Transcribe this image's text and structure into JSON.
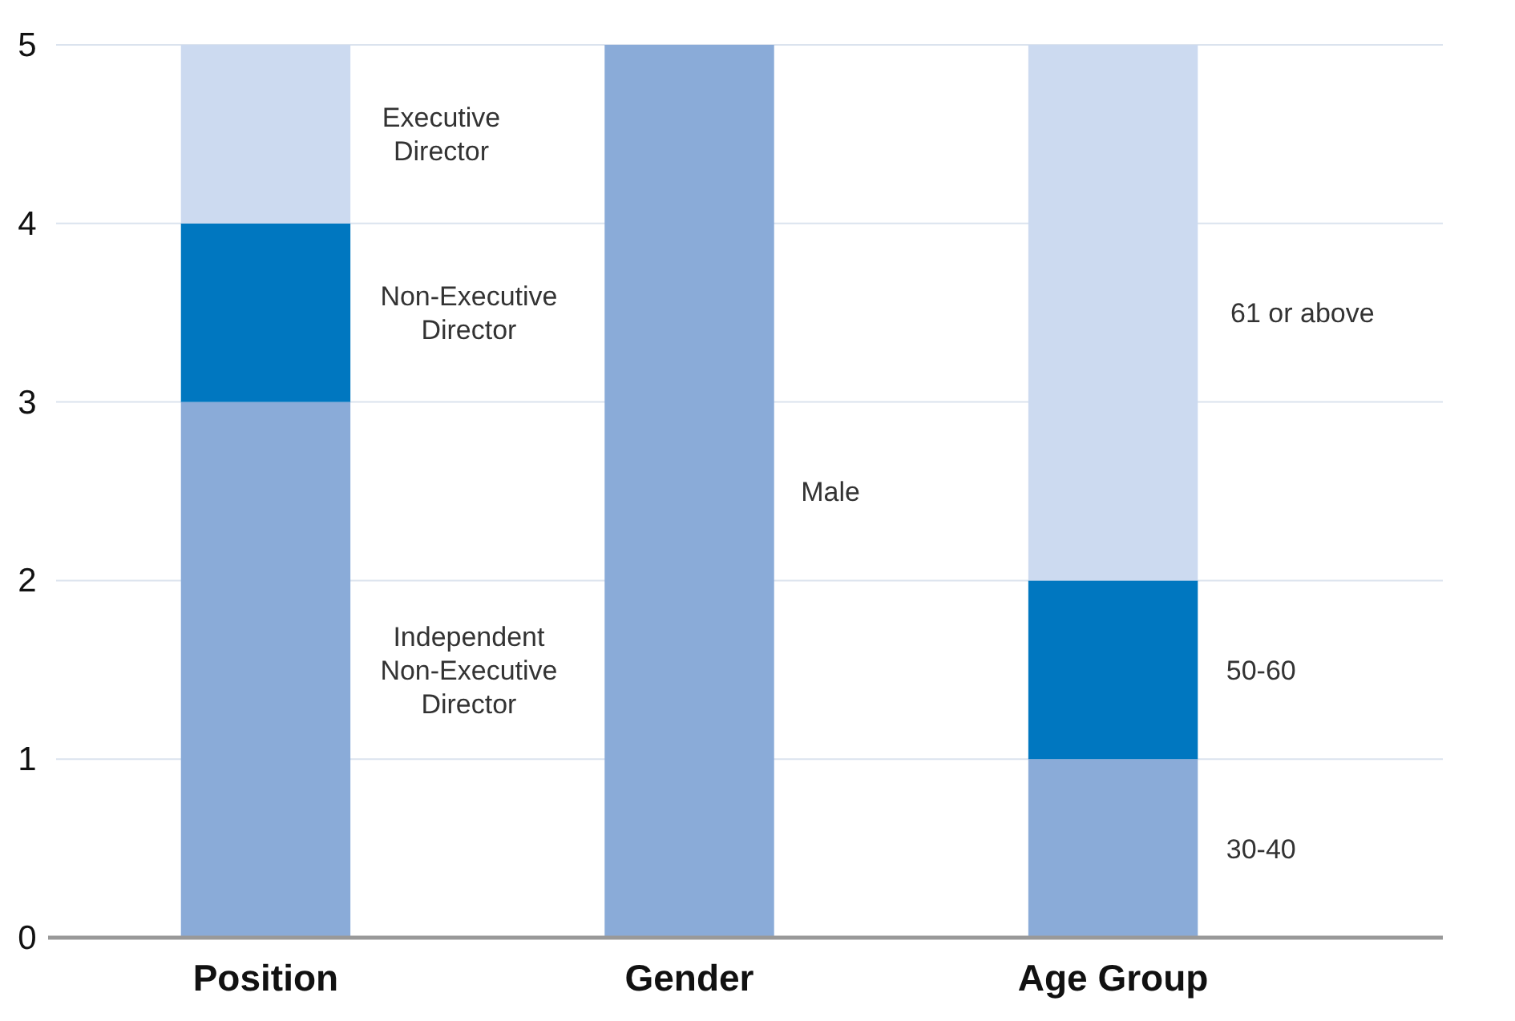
{
  "chart_data": {
    "type": "bar",
    "stacked": true,
    "categories": [
      "Position",
      "Gender",
      "Age Group"
    ],
    "ylim": [
      0,
      5
    ],
    "yticks": [
      0,
      1,
      2,
      3,
      4,
      5
    ],
    "grid": "y",
    "series": [
      {
        "name": "Independent Non-Executive Director",
        "color": "#8aabd8",
        "values": [
          3,
          null,
          null
        ]
      },
      {
        "name": "Non-Executive Director",
        "color": "#0077c0",
        "values": [
          1,
          null,
          null
        ]
      },
      {
        "name": "Executive Director",
        "color": "#ccdaf0",
        "values": [
          1,
          null,
          null
        ]
      },
      {
        "name": "Male",
        "color": "#8aabd8",
        "values": [
          null,
          5,
          null
        ]
      },
      {
        "name": "30-40",
        "color": "#8aabd8",
        "values": [
          null,
          null,
          1
        ]
      },
      {
        "name": "50-60",
        "color": "#0077c0",
        "values": [
          null,
          null,
          1
        ]
      },
      {
        "name": "61 or above",
        "color": "#ccdaf0",
        "values": [
          null,
          null,
          3
        ]
      }
    ]
  }
}
